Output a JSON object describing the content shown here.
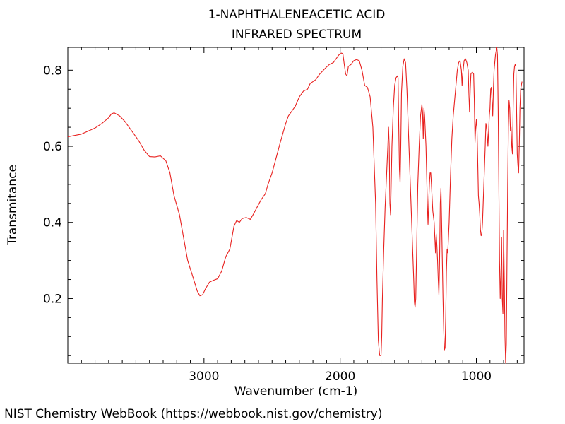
{
  "chart_data": {
    "type": "line",
    "title": "1-NAPHTHALENEACETIC ACID",
    "subtitle": "INFRARED SPECTRUM",
    "xlabel": "Wavenumber (cm-1)",
    "ylabel": "Transmitance",
    "xlim": [
      4000,
      650
    ],
    "ylim": [
      0.03,
      0.86
    ],
    "x_reversed": true,
    "grid": false,
    "x_ticks": [
      3000,
      2000,
      1000
    ],
    "y_ticks": [
      0.2,
      0.4,
      0.6,
      0.8
    ],
    "series": [
      {
        "color": "#e8211f",
        "points": [
          [
            4000,
            0.625
          ],
          [
            3900,
            0.632
          ],
          [
            3800,
            0.648
          ],
          [
            3750,
            0.66
          ],
          [
            3700,
            0.675
          ],
          [
            3680,
            0.685
          ],
          [
            3660,
            0.688
          ],
          [
            3620,
            0.68
          ],
          [
            3580,
            0.665
          ],
          [
            3530,
            0.64
          ],
          [
            3480,
            0.615
          ],
          [
            3440,
            0.59
          ],
          [
            3400,
            0.573
          ],
          [
            3360,
            0.572
          ],
          [
            3320,
            0.575
          ],
          [
            3280,
            0.562
          ],
          [
            3250,
            0.53
          ],
          [
            3220,
            0.47
          ],
          [
            3180,
            0.42
          ],
          [
            3150,
            0.36
          ],
          [
            3120,
            0.3
          ],
          [
            3080,
            0.255
          ],
          [
            3050,
            0.22
          ],
          [
            3030,
            0.207
          ],
          [
            3010,
            0.21
          ],
          [
            2990,
            0.225
          ],
          [
            2960,
            0.243
          ],
          [
            2930,
            0.248
          ],
          [
            2900,
            0.252
          ],
          [
            2870,
            0.272
          ],
          [
            2840,
            0.31
          ],
          [
            2810,
            0.33
          ],
          [
            2780,
            0.39
          ],
          [
            2760,
            0.405
          ],
          [
            2740,
            0.4
          ],
          [
            2720,
            0.41
          ],
          [
            2690,
            0.413
          ],
          [
            2660,
            0.408
          ],
          [
            2640,
            0.42
          ],
          [
            2610,
            0.44
          ],
          [
            2580,
            0.46
          ],
          [
            2550,
            0.475
          ],
          [
            2530,
            0.5
          ],
          [
            2500,
            0.53
          ],
          [
            2470,
            0.57
          ],
          [
            2440,
            0.61
          ],
          [
            2400,
            0.66
          ],
          [
            2380,
            0.68
          ],
          [
            2350,
            0.695
          ],
          [
            2330,
            0.705
          ],
          [
            2300,
            0.73
          ],
          [
            2270,
            0.745
          ],
          [
            2240,
            0.75
          ],
          [
            2220,
            0.765
          ],
          [
            2180,
            0.775
          ],
          [
            2150,
            0.79
          ],
          [
            2110,
            0.805
          ],
          [
            2080,
            0.815
          ],
          [
            2050,
            0.82
          ],
          [
            2030,
            0.83
          ],
          [
            2010,
            0.84
          ],
          [
            1990,
            0.845
          ],
          [
            1980,
            0.843
          ],
          [
            1970,
            0.815
          ],
          [
            1960,
            0.79
          ],
          [
            1950,
            0.785
          ],
          [
            1940,
            0.81
          ],
          [
            1920,
            0.815
          ],
          [
            1900,
            0.825
          ],
          [
            1880,
            0.828
          ],
          [
            1860,
            0.825
          ],
          [
            1840,
            0.8
          ],
          [
            1820,
            0.76
          ],
          [
            1800,
            0.755
          ],
          [
            1780,
            0.73
          ],
          [
            1760,
            0.65
          ],
          [
            1740,
            0.45
          ],
          [
            1730,
            0.25
          ],
          [
            1720,
            0.09
          ],
          [
            1710,
            0.05
          ],
          [
            1700,
            0.05
          ],
          [
            1695,
            0.1
          ],
          [
            1690,
            0.2
          ],
          [
            1680,
            0.33
          ],
          [
            1670,
            0.44
          ],
          [
            1660,
            0.52
          ],
          [
            1650,
            0.6
          ],
          [
            1645,
            0.65
          ],
          [
            1640,
            0.6
          ],
          [
            1635,
            0.45
          ],
          [
            1630,
            0.42
          ],
          [
            1620,
            0.6
          ],
          [
            1610,
            0.7
          ],
          [
            1600,
            0.76
          ],
          [
            1590,
            0.78
          ],
          [
            1580,
            0.785
          ],
          [
            1575,
            0.78
          ],
          [
            1570,
            0.65
          ],
          [
            1565,
            0.54
          ],
          [
            1560,
            0.505
          ],
          [
            1555,
            0.6
          ],
          [
            1550,
            0.74
          ],
          [
            1540,
            0.81
          ],
          [
            1530,
            0.83
          ],
          [
            1520,
            0.82
          ],
          [
            1510,
            0.75
          ],
          [
            1500,
            0.65
          ],
          [
            1490,
            0.55
          ],
          [
            1480,
            0.45
          ],
          [
            1470,
            0.35
          ],
          [
            1460,
            0.25
          ],
          [
            1455,
            0.19
          ],
          [
            1450,
            0.177
          ],
          [
            1445,
            0.2
          ],
          [
            1440,
            0.3
          ],
          [
            1430,
            0.5
          ],
          [
            1420,
            0.6
          ],
          [
            1410,
            0.68
          ],
          [
            1400,
            0.71
          ],
          [
            1395,
            0.69
          ],
          [
            1390,
            0.62
          ],
          [
            1385,
            0.7
          ],
          [
            1380,
            0.68
          ],
          [
            1370,
            0.6
          ],
          [
            1360,
            0.45
          ],
          [
            1355,
            0.395
          ],
          [
            1350,
            0.45
          ],
          [
            1345,
            0.5
          ],
          [
            1340,
            0.53
          ],
          [
            1335,
            0.53
          ],
          [
            1330,
            0.5
          ],
          [
            1320,
            0.43
          ],
          [
            1310,
            0.4
          ],
          [
            1305,
            0.36
          ],
          [
            1300,
            0.32
          ],
          [
            1295,
            0.37
          ],
          [
            1290,
            0.34
          ],
          [
            1285,
            0.3
          ],
          [
            1280,
            0.25
          ],
          [
            1275,
            0.21
          ],
          [
            1270,
            0.3
          ],
          [
            1265,
            0.45
          ],
          [
            1260,
            0.49
          ],
          [
            1255,
            0.4
          ],
          [
            1250,
            0.3
          ],
          [
            1245,
            0.2
          ],
          [
            1240,
            0.12
          ],
          [
            1235,
            0.065
          ],
          [
            1230,
            0.07
          ],
          [
            1225,
            0.15
          ],
          [
            1220,
            0.27
          ],
          [
            1215,
            0.33
          ],
          [
            1210,
            0.32
          ],
          [
            1205,
            0.36
          ],
          [
            1200,
            0.4
          ],
          [
            1190,
            0.52
          ],
          [
            1180,
            0.62
          ],
          [
            1170,
            0.68
          ],
          [
            1160,
            0.72
          ],
          [
            1150,
            0.76
          ],
          [
            1140,
            0.8
          ],
          [
            1130,
            0.82
          ],
          [
            1120,
            0.825
          ],
          [
            1110,
            0.8
          ],
          [
            1105,
            0.76
          ],
          [
            1100,
            0.79
          ],
          [
            1090,
            0.825
          ],
          [
            1080,
            0.83
          ],
          [
            1070,
            0.82
          ],
          [
            1060,
            0.8
          ],
          [
            1055,
            0.74
          ],
          [
            1050,
            0.69
          ],
          [
            1045,
            0.75
          ],
          [
            1040,
            0.79
          ],
          [
            1030,
            0.795
          ],
          [
            1020,
            0.79
          ],
          [
            1015,
            0.72
          ],
          [
            1010,
            0.61
          ],
          [
            1005,
            0.65
          ],
          [
            1000,
            0.67
          ],
          [
            995,
            0.64
          ],
          [
            990,
            0.56
          ],
          [
            985,
            0.47
          ],
          [
            980,
            0.45
          ],
          [
            975,
            0.42
          ],
          [
            970,
            0.38
          ],
          [
            965,
            0.365
          ],
          [
            960,
            0.37
          ],
          [
            955,
            0.4
          ],
          [
            950,
            0.45
          ],
          [
            945,
            0.5
          ],
          [
            940,
            0.55
          ],
          [
            935,
            0.6
          ],
          [
            930,
            0.66
          ],
          [
            925,
            0.65
          ],
          [
            920,
            0.63
          ],
          [
            915,
            0.6
          ],
          [
            910,
            0.64
          ],
          [
            905,
            0.68
          ],
          [
            900,
            0.7
          ],
          [
            895,
            0.75
          ],
          [
            890,
            0.755
          ],
          [
            885,
            0.72
          ],
          [
            880,
            0.68
          ],
          [
            875,
            0.75
          ],
          [
            870,
            0.8
          ],
          [
            860,
            0.84
          ],
          [
            850,
            0.86
          ],
          [
            845,
            0.84
          ],
          [
            840,
            0.7
          ],
          [
            835,
            0.5
          ],
          [
            830,
            0.3
          ],
          [
            825,
            0.2
          ],
          [
            820,
            0.26
          ],
          [
            815,
            0.36
          ],
          [
            810,
            0.2
          ],
          [
            805,
            0.16
          ],
          [
            800,
            0.38
          ],
          [
            795,
            0.25
          ],
          [
            790,
            0.1
          ],
          [
            785,
            0.03
          ],
          [
            780,
            0.08
          ],
          [
            775,
            0.3
          ],
          [
            770,
            0.5
          ],
          [
            765,
            0.65
          ],
          [
            760,
            0.72
          ],
          [
            755,
            0.7
          ],
          [
            750,
            0.64
          ],
          [
            745,
            0.65
          ],
          [
            740,
            0.6
          ],
          [
            735,
            0.58
          ],
          [
            730,
            0.7
          ],
          [
            725,
            0.79
          ],
          [
            720,
            0.81
          ],
          [
            715,
            0.815
          ],
          [
            710,
            0.81
          ],
          [
            705,
            0.7
          ],
          [
            700,
            0.58
          ],
          [
            695,
            0.55
          ],
          [
            690,
            0.53
          ],
          [
            685,
            0.6
          ],
          [
            680,
            0.7
          ],
          [
            675,
            0.75
          ],
          [
            670,
            0.76
          ],
          [
            665,
            0.77
          ]
        ]
      }
    ]
  },
  "footer": {
    "credit": "NIST Chemistry WebBook (https://webbook.nist.gov/chemistry)"
  }
}
